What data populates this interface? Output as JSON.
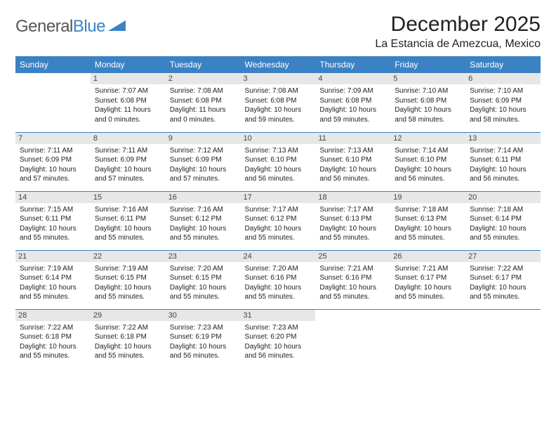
{
  "logo": {
    "part1": "General",
    "part2": "Blue"
  },
  "title": "December 2025",
  "location": "La Estancia de Amezcua, Mexico",
  "dayHeaders": [
    "Sunday",
    "Monday",
    "Tuesday",
    "Wednesday",
    "Thursday",
    "Friday",
    "Saturday"
  ],
  "colors": {
    "headerBg": "#3b82c4",
    "headerText": "#ffffff",
    "dayNumBg": "#e7e7e7",
    "rowBorder": "#3b82c4",
    "logoGray": "#555555",
    "logoBlue": "#3b82c4",
    "text": "#222222"
  },
  "weeks": [
    [
      null,
      {
        "n": "1",
        "sr": "Sunrise: 7:07 AM",
        "ss": "Sunset: 6:08 PM",
        "d1": "Daylight: 11 hours",
        "d2": "and 0 minutes."
      },
      {
        "n": "2",
        "sr": "Sunrise: 7:08 AM",
        "ss": "Sunset: 6:08 PM",
        "d1": "Daylight: 11 hours",
        "d2": "and 0 minutes."
      },
      {
        "n": "3",
        "sr": "Sunrise: 7:08 AM",
        "ss": "Sunset: 6:08 PM",
        "d1": "Daylight: 10 hours",
        "d2": "and 59 minutes."
      },
      {
        "n": "4",
        "sr": "Sunrise: 7:09 AM",
        "ss": "Sunset: 6:08 PM",
        "d1": "Daylight: 10 hours",
        "d2": "and 59 minutes."
      },
      {
        "n": "5",
        "sr": "Sunrise: 7:10 AM",
        "ss": "Sunset: 6:08 PM",
        "d1": "Daylight: 10 hours",
        "d2": "and 58 minutes."
      },
      {
        "n": "6",
        "sr": "Sunrise: 7:10 AM",
        "ss": "Sunset: 6:09 PM",
        "d1": "Daylight: 10 hours",
        "d2": "and 58 minutes."
      }
    ],
    [
      {
        "n": "7",
        "sr": "Sunrise: 7:11 AM",
        "ss": "Sunset: 6:09 PM",
        "d1": "Daylight: 10 hours",
        "d2": "and 57 minutes."
      },
      {
        "n": "8",
        "sr": "Sunrise: 7:11 AM",
        "ss": "Sunset: 6:09 PM",
        "d1": "Daylight: 10 hours",
        "d2": "and 57 minutes."
      },
      {
        "n": "9",
        "sr": "Sunrise: 7:12 AM",
        "ss": "Sunset: 6:09 PM",
        "d1": "Daylight: 10 hours",
        "d2": "and 57 minutes."
      },
      {
        "n": "10",
        "sr": "Sunrise: 7:13 AM",
        "ss": "Sunset: 6:10 PM",
        "d1": "Daylight: 10 hours",
        "d2": "and 56 minutes."
      },
      {
        "n": "11",
        "sr": "Sunrise: 7:13 AM",
        "ss": "Sunset: 6:10 PM",
        "d1": "Daylight: 10 hours",
        "d2": "and 56 minutes."
      },
      {
        "n": "12",
        "sr": "Sunrise: 7:14 AM",
        "ss": "Sunset: 6:10 PM",
        "d1": "Daylight: 10 hours",
        "d2": "and 56 minutes."
      },
      {
        "n": "13",
        "sr": "Sunrise: 7:14 AM",
        "ss": "Sunset: 6:11 PM",
        "d1": "Daylight: 10 hours",
        "d2": "and 56 minutes."
      }
    ],
    [
      {
        "n": "14",
        "sr": "Sunrise: 7:15 AM",
        "ss": "Sunset: 6:11 PM",
        "d1": "Daylight: 10 hours",
        "d2": "and 55 minutes."
      },
      {
        "n": "15",
        "sr": "Sunrise: 7:16 AM",
        "ss": "Sunset: 6:11 PM",
        "d1": "Daylight: 10 hours",
        "d2": "and 55 minutes."
      },
      {
        "n": "16",
        "sr": "Sunrise: 7:16 AM",
        "ss": "Sunset: 6:12 PM",
        "d1": "Daylight: 10 hours",
        "d2": "and 55 minutes."
      },
      {
        "n": "17",
        "sr": "Sunrise: 7:17 AM",
        "ss": "Sunset: 6:12 PM",
        "d1": "Daylight: 10 hours",
        "d2": "and 55 minutes."
      },
      {
        "n": "18",
        "sr": "Sunrise: 7:17 AM",
        "ss": "Sunset: 6:13 PM",
        "d1": "Daylight: 10 hours",
        "d2": "and 55 minutes."
      },
      {
        "n": "19",
        "sr": "Sunrise: 7:18 AM",
        "ss": "Sunset: 6:13 PM",
        "d1": "Daylight: 10 hours",
        "d2": "and 55 minutes."
      },
      {
        "n": "20",
        "sr": "Sunrise: 7:18 AM",
        "ss": "Sunset: 6:14 PM",
        "d1": "Daylight: 10 hours",
        "d2": "and 55 minutes."
      }
    ],
    [
      {
        "n": "21",
        "sr": "Sunrise: 7:19 AM",
        "ss": "Sunset: 6:14 PM",
        "d1": "Daylight: 10 hours",
        "d2": "and 55 minutes."
      },
      {
        "n": "22",
        "sr": "Sunrise: 7:19 AM",
        "ss": "Sunset: 6:15 PM",
        "d1": "Daylight: 10 hours",
        "d2": "and 55 minutes."
      },
      {
        "n": "23",
        "sr": "Sunrise: 7:20 AM",
        "ss": "Sunset: 6:15 PM",
        "d1": "Daylight: 10 hours",
        "d2": "and 55 minutes."
      },
      {
        "n": "24",
        "sr": "Sunrise: 7:20 AM",
        "ss": "Sunset: 6:16 PM",
        "d1": "Daylight: 10 hours",
        "d2": "and 55 minutes."
      },
      {
        "n": "25",
        "sr": "Sunrise: 7:21 AM",
        "ss": "Sunset: 6:16 PM",
        "d1": "Daylight: 10 hours",
        "d2": "and 55 minutes."
      },
      {
        "n": "26",
        "sr": "Sunrise: 7:21 AM",
        "ss": "Sunset: 6:17 PM",
        "d1": "Daylight: 10 hours",
        "d2": "and 55 minutes."
      },
      {
        "n": "27",
        "sr": "Sunrise: 7:22 AM",
        "ss": "Sunset: 6:17 PM",
        "d1": "Daylight: 10 hours",
        "d2": "and 55 minutes."
      }
    ],
    [
      {
        "n": "28",
        "sr": "Sunrise: 7:22 AM",
        "ss": "Sunset: 6:18 PM",
        "d1": "Daylight: 10 hours",
        "d2": "and 55 minutes."
      },
      {
        "n": "29",
        "sr": "Sunrise: 7:22 AM",
        "ss": "Sunset: 6:18 PM",
        "d1": "Daylight: 10 hours",
        "d2": "and 55 minutes."
      },
      {
        "n": "30",
        "sr": "Sunrise: 7:23 AM",
        "ss": "Sunset: 6:19 PM",
        "d1": "Daylight: 10 hours",
        "d2": "and 56 minutes."
      },
      {
        "n": "31",
        "sr": "Sunrise: 7:23 AM",
        "ss": "Sunset: 6:20 PM",
        "d1": "Daylight: 10 hours",
        "d2": "and 56 minutes."
      },
      null,
      null,
      null
    ]
  ]
}
